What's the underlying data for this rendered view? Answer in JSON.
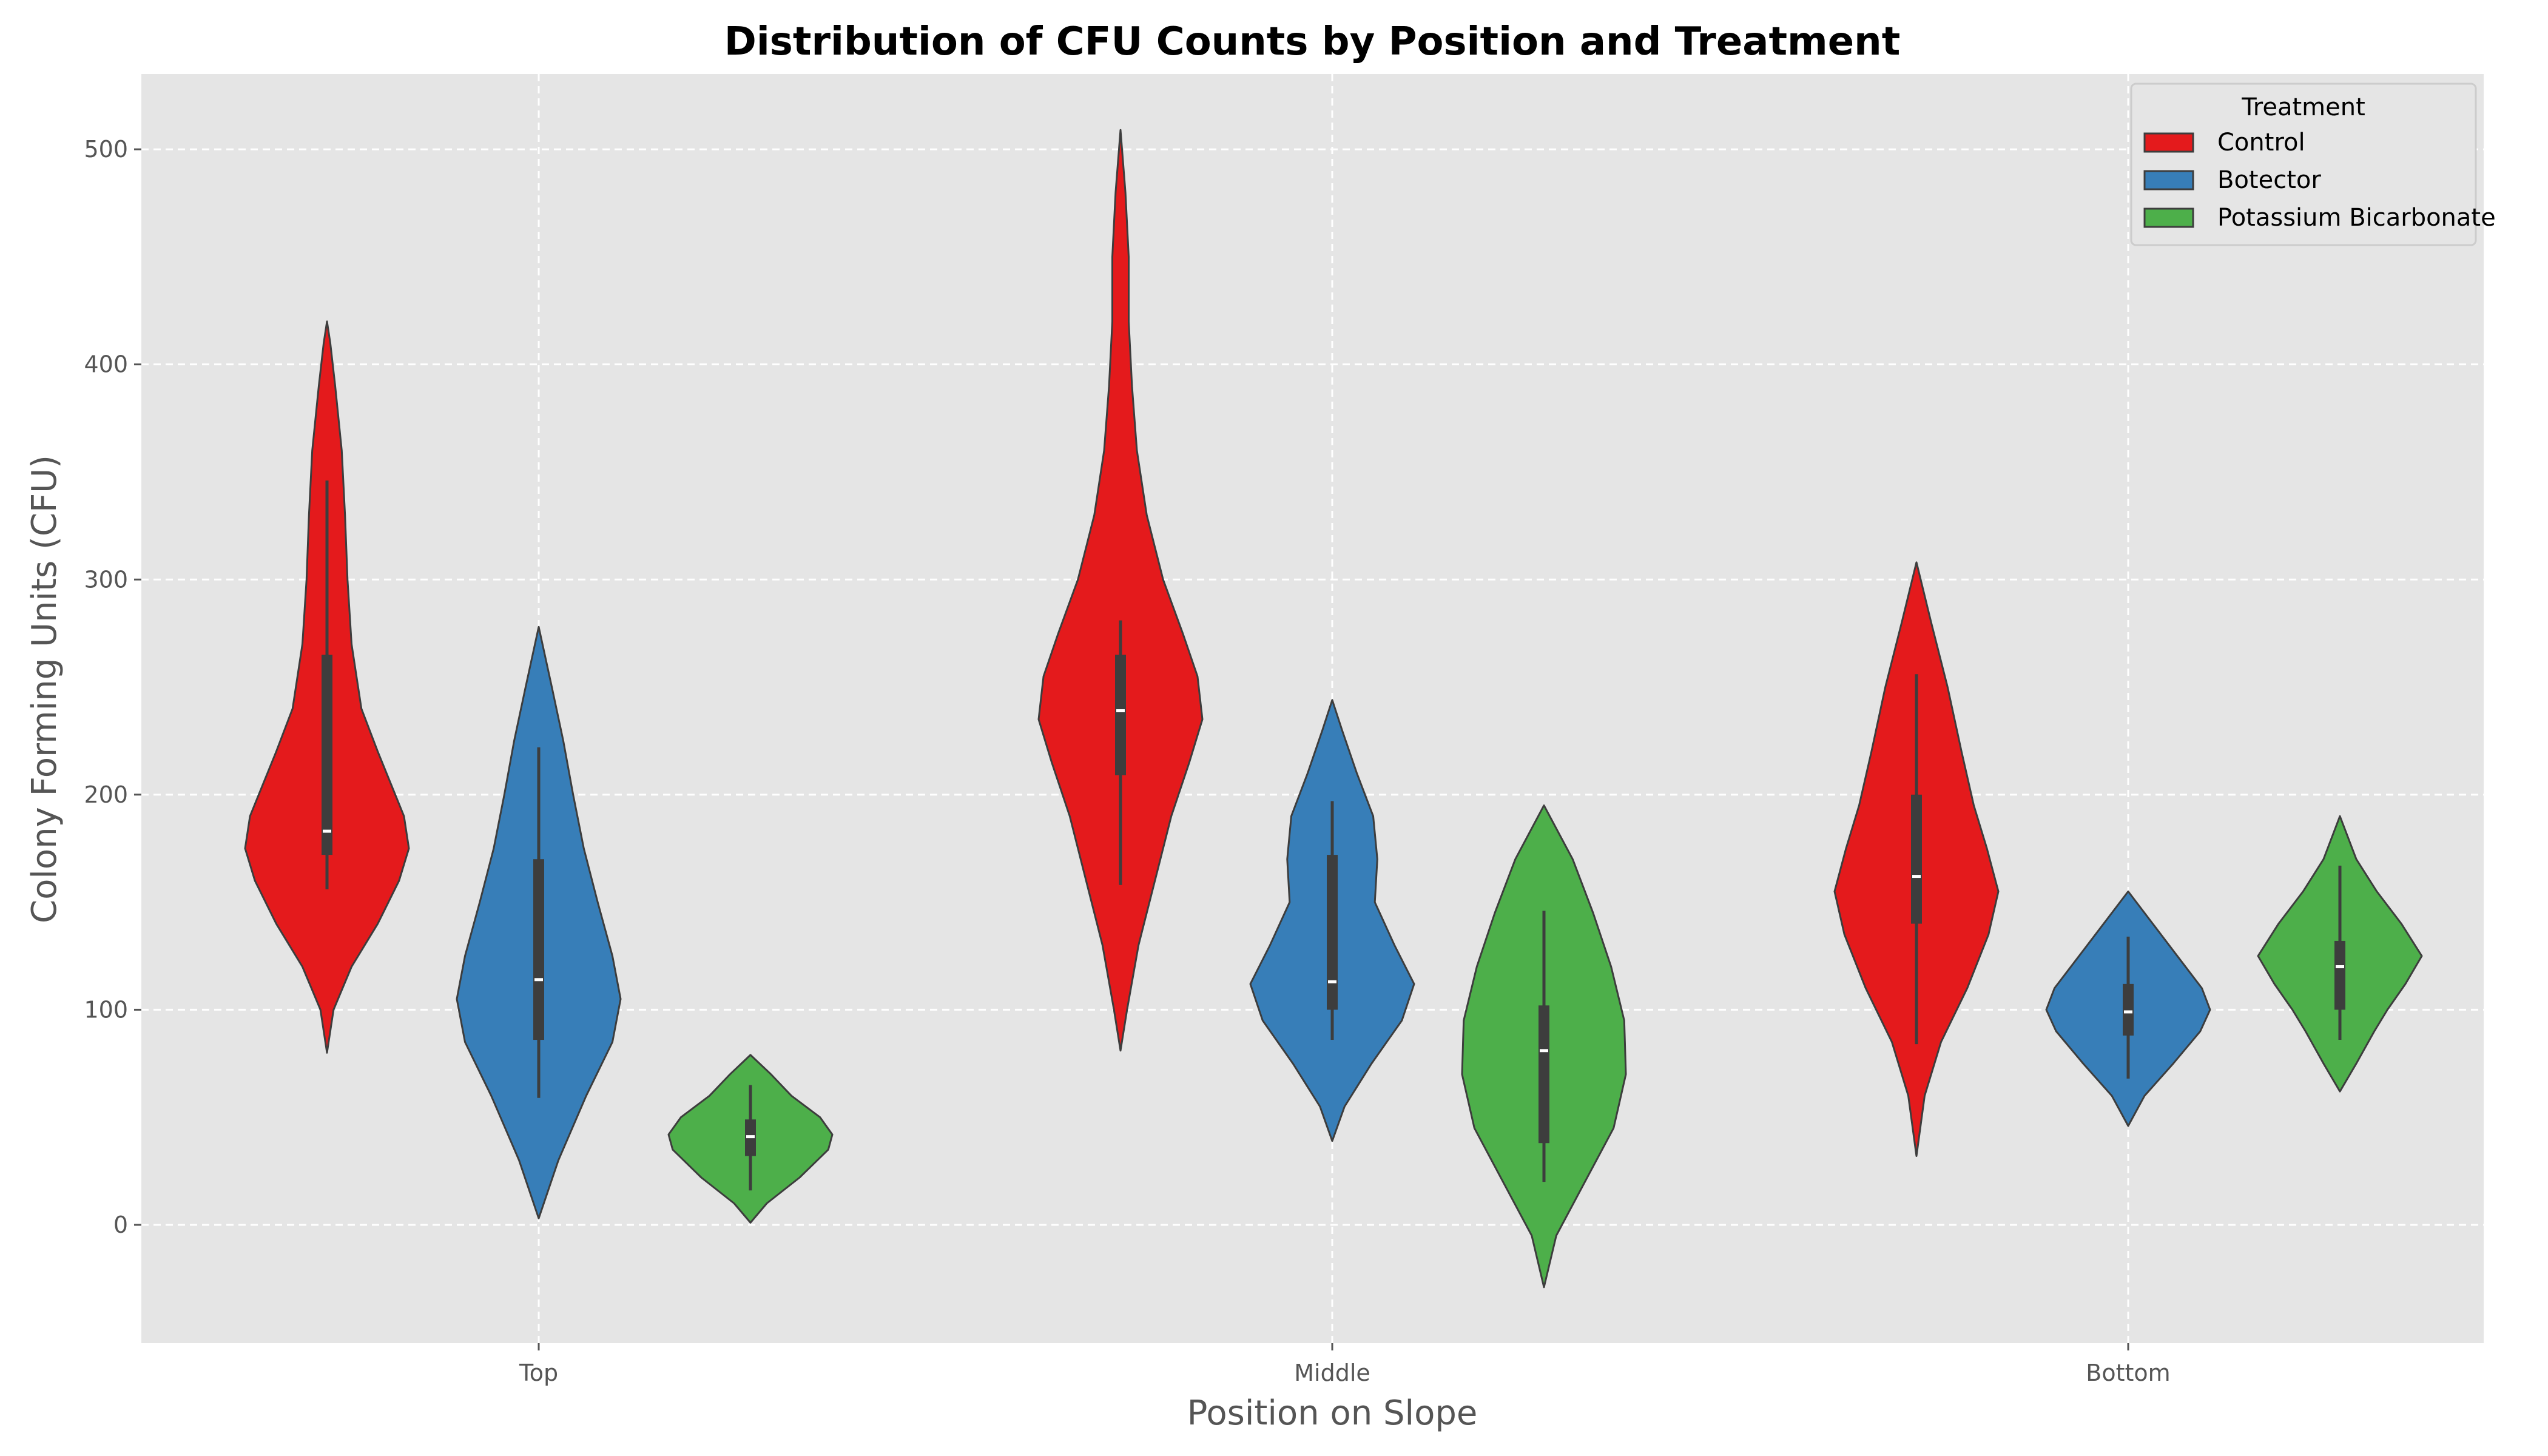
{
  "chart_data": {
    "type": "violin",
    "title": "Distribution of CFU Counts by Position and Treatment",
    "xlabel": "Position on Slope",
    "ylabel": "Colony Forming Units (CFU)",
    "categories": [
      "Top",
      "Middle",
      "Bottom"
    ],
    "yticks": [
      0,
      100,
      200,
      300,
      400,
      500
    ],
    "ylim": [
      -55,
      535
    ],
    "grid": true,
    "legend": {
      "title": "Treatment",
      "position": "top-right"
    },
    "series": [
      {
        "name": "Control",
        "color": "#e41a1c",
        "violins": [
          {
            "category": "Top",
            "min": 80,
            "max": 420,
            "q1": 172,
            "median": 183,
            "q3": 265,
            "whisker_low": 156,
            "whisker_high": 346,
            "profile": [
              [
                80,
                0
              ],
              [
                100,
                0.08
              ],
              [
                120,
                0.3
              ],
              [
                140,
                0.62
              ],
              [
                160,
                0.88
              ],
              [
                175,
                1.0
              ],
              [
                190,
                0.94
              ],
              [
                205,
                0.78
              ],
              [
                220,
                0.62
              ],
              [
                240,
                0.42
              ],
              [
                270,
                0.3
              ],
              [
                300,
                0.25
              ],
              [
                330,
                0.22
              ],
              [
                360,
                0.18
              ],
              [
                390,
                0.1
              ],
              [
                410,
                0.04
              ],
              [
                420,
                0
              ]
            ]
          },
          {
            "category": "Middle",
            "min": 81,
            "max": 509,
            "q1": 209,
            "median": 239,
            "q3": 265,
            "whisker_low": 158,
            "whisker_high": 281,
            "profile": [
              [
                81,
                0
              ],
              [
                100,
                0.08
              ],
              [
                130,
                0.22
              ],
              [
                160,
                0.42
              ],
              [
                190,
                0.62
              ],
              [
                215,
                0.84
              ],
              [
                235,
                1.0
              ],
              [
                255,
                0.94
              ],
              [
                275,
                0.76
              ],
              [
                300,
                0.52
              ],
              [
                330,
                0.32
              ],
              [
                360,
                0.2
              ],
              [
                390,
                0.14
              ],
              [
                420,
                0.1
              ],
              [
                450,
                0.1
              ],
              [
                480,
                0.06
              ],
              [
                509,
                0
              ]
            ]
          },
          {
            "category": "Bottom",
            "min": 32,
            "max": 308,
            "q1": 140,
            "median": 162,
            "q3": 200,
            "whisker_low": 84,
            "whisker_high": 256,
            "profile": [
              [
                32,
                0
              ],
              [
                60,
                0.1
              ],
              [
                85,
                0.3
              ],
              [
                110,
                0.62
              ],
              [
                135,
                0.88
              ],
              [
                155,
                1.0
              ],
              [
                175,
                0.86
              ],
              [
                195,
                0.7
              ],
              [
                220,
                0.55
              ],
              [
                250,
                0.38
              ],
              [
                280,
                0.18
              ],
              [
                308,
                0
              ]
            ]
          }
        ]
      },
      {
        "name": "Botector",
        "color": "#377eb8",
        "violins": [
          {
            "category": "Top",
            "min": 3,
            "max": 278,
            "q1": 86,
            "median": 114,
            "q3": 170,
            "whisker_low": 59,
            "whisker_high": 222,
            "profile": [
              [
                3,
                0
              ],
              [
                30,
                0.24
              ],
              [
                60,
                0.58
              ],
              [
                85,
                0.9
              ],
              [
                105,
                1.0
              ],
              [
                125,
                0.9
              ],
              [
                150,
                0.72
              ],
              [
                175,
                0.55
              ],
              [
                200,
                0.42
              ],
              [
                225,
                0.3
              ],
              [
                250,
                0.16
              ],
              [
                278,
                0
              ]
            ]
          },
          {
            "category": "Middle",
            "min": 39,
            "max": 244,
            "q1": 100,
            "median": 113,
            "q3": 172,
            "whisker_low": 86,
            "whisker_high": 197,
            "profile": [
              [
                39,
                0
              ],
              [
                55,
                0.15
              ],
              [
                75,
                0.48
              ],
              [
                95,
                0.85
              ],
              [
                112,
                1.0
              ],
              [
                130,
                0.76
              ],
              [
                150,
                0.52
              ],
              [
                170,
                0.55
              ],
              [
                190,
                0.5
              ],
              [
                210,
                0.3
              ],
              [
                230,
                0.12
              ],
              [
                244,
                0
              ]
            ]
          },
          {
            "category": "Bottom",
            "min": 46,
            "max": 155,
            "q1": 88,
            "median": 99,
            "q3": 112,
            "whisker_low": 68,
            "whisker_high": 134,
            "profile": [
              [
                46,
                0
              ],
              [
                60,
                0.2
              ],
              [
                75,
                0.55
              ],
              [
                90,
                0.88
              ],
              [
                100,
                1.0
              ],
              [
                110,
                0.9
              ],
              [
                125,
                0.6
              ],
              [
                140,
                0.3
              ],
              [
                155,
                0
              ]
            ]
          }
        ]
      },
      {
        "name": "Potassium Bicarbonate",
        "color": "#4daf4a",
        "violins": [
          {
            "category": "Top",
            "min": 1,
            "max": 79,
            "q1": 32,
            "median": 41,
            "q3": 49,
            "whisker_low": 16,
            "whisker_high": 65,
            "profile": [
              [
                1,
                0
              ],
              [
                10,
                0.2
              ],
              [
                22,
                0.6
              ],
              [
                35,
                0.95
              ],
              [
                42,
                1.0
              ],
              [
                50,
                0.85
              ],
              [
                60,
                0.5
              ],
              [
                70,
                0.25
              ],
              [
                79,
                0
              ]
            ]
          },
          {
            "category": "Middle",
            "min": -29,
            "max": 195,
            "q1": 38,
            "median": 81,
            "q3": 102,
            "whisker_low": 20,
            "whisker_high": 146,
            "profile": [
              [
                -29,
                0
              ],
              [
                -5,
                0.15
              ],
              [
                20,
                0.5
              ],
              [
                45,
                0.85
              ],
              [
                70,
                1.0
              ],
              [
                95,
                0.98
              ],
              [
                120,
                0.82
              ],
              [
                145,
                0.6
              ],
              [
                170,
                0.35
              ],
              [
                195,
                0
              ]
            ]
          },
          {
            "category": "Bottom",
            "min": 62,
            "max": 190,
            "q1": 100,
            "median": 120,
            "q3": 132,
            "whisker_low": 86,
            "whisker_high": 167,
            "profile": [
              [
                62,
                0
              ],
              [
                75,
                0.2
              ],
              [
                90,
                0.42
              ],
              [
                100,
                0.58
              ],
              [
                112,
                0.8
              ],
              [
                125,
                1.0
              ],
              [
                140,
                0.75
              ],
              [
                155,
                0.45
              ],
              [
                170,
                0.2
              ],
              [
                190,
                0
              ]
            ]
          }
        ]
      }
    ]
  }
}
